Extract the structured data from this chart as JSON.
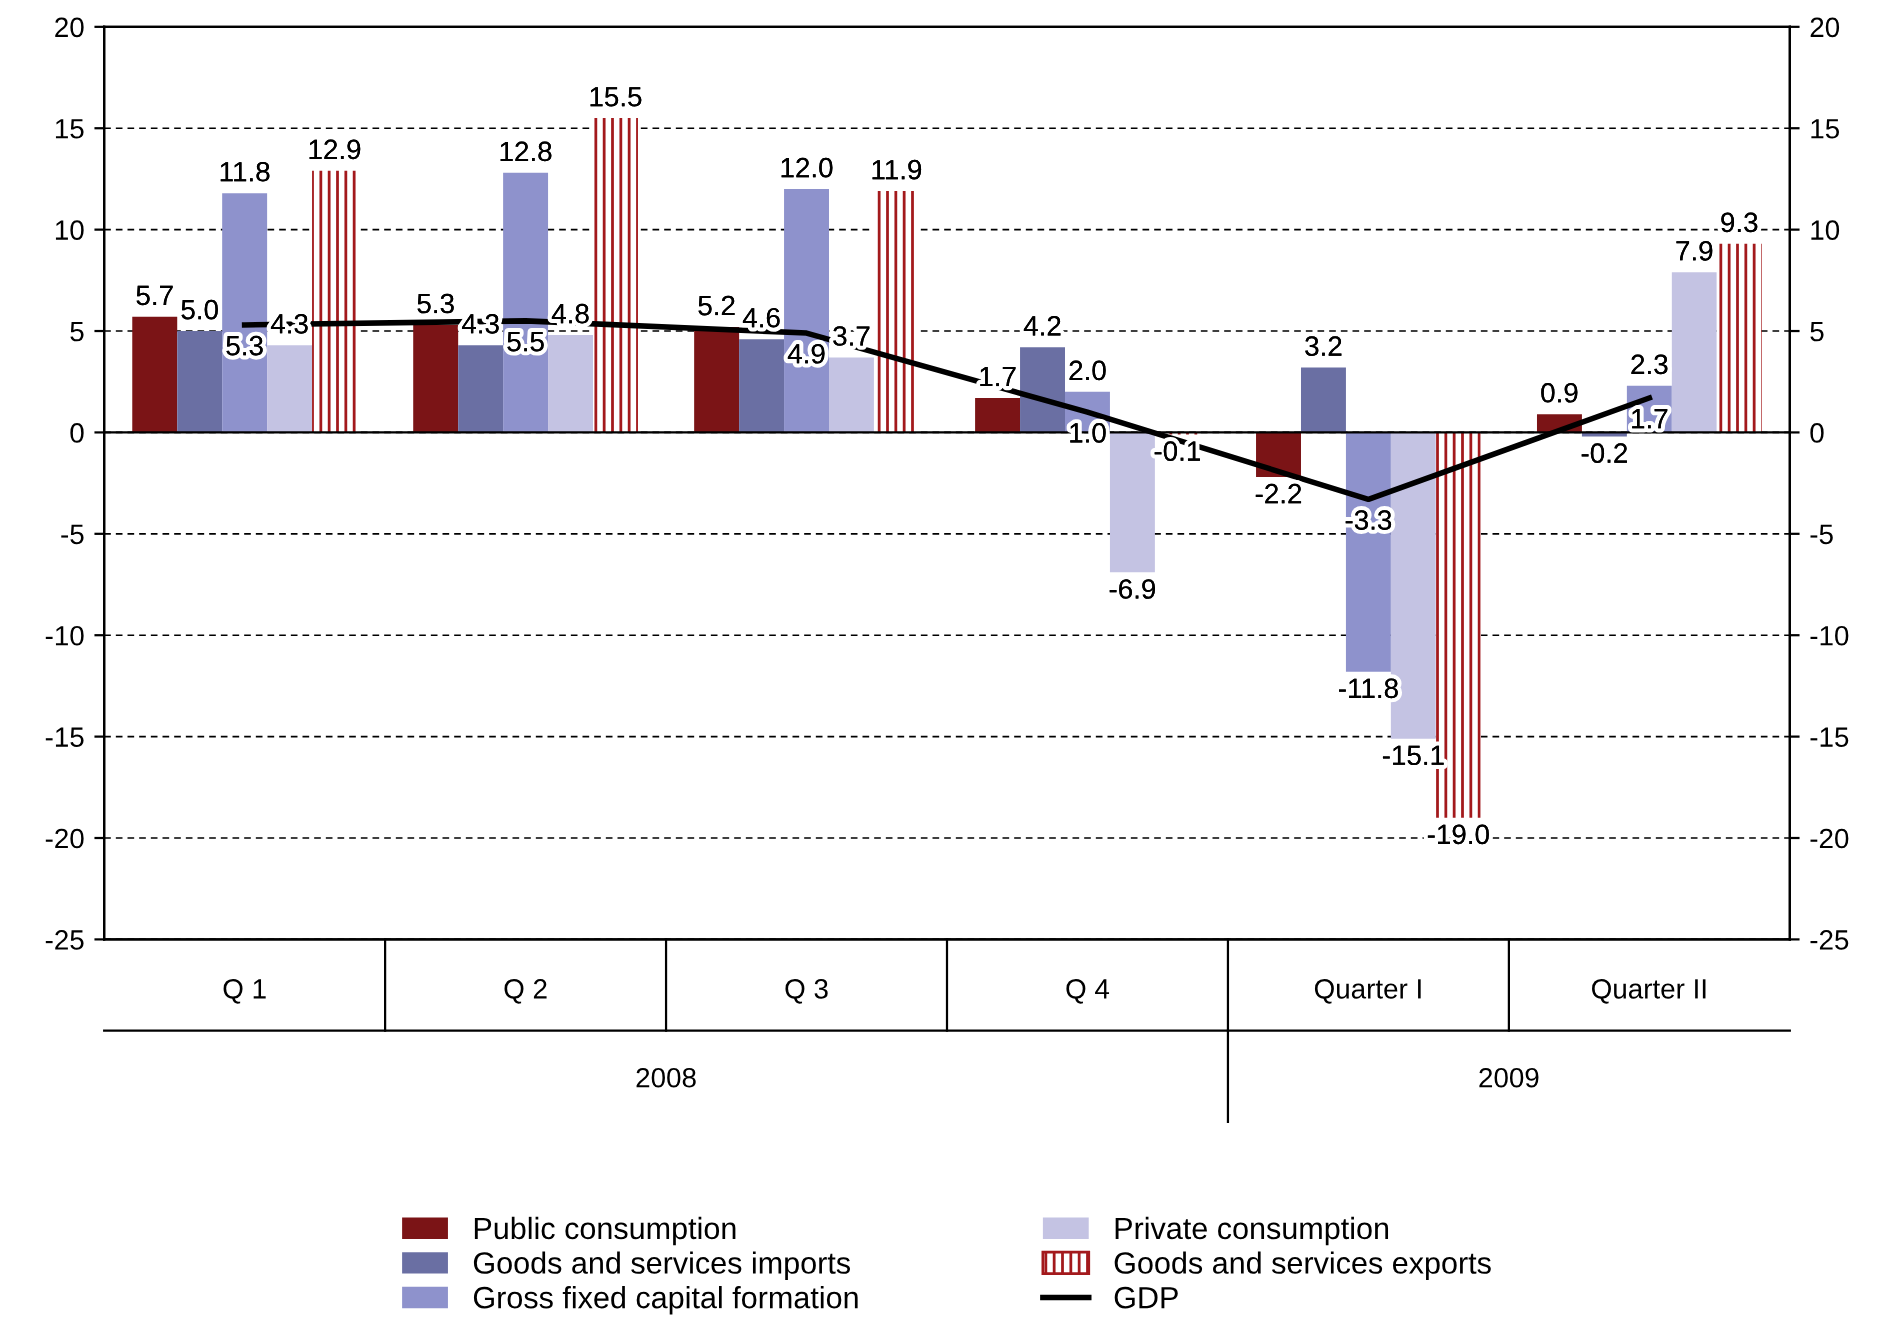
{
  "chart_data": {
    "type": "bar",
    "categories": [
      "Q 1",
      "Q 2",
      "Q 3",
      "Q 4",
      "Quarter I",
      "Quarter II"
    ],
    "series": [
      {
        "name": "Public consumption",
        "color": "#7b1416",
        "values": [
          5.7,
          5.3,
          5.2,
          1.7,
          -2.2,
          0.9
        ],
        "value_labels": [
          "5.7",
          "5.3",
          "5.2",
          "1.7",
          "-2.2",
          "0.9"
        ]
      },
      {
        "name": "Goods and services imports",
        "color": "#6a6fa3",
        "values": [
          5.0,
          4.3,
          4.6,
          4.2,
          3.2,
          -0.2
        ],
        "value_labels": [
          "5.0",
          "4.3",
          "4.6",
          "4.2",
          "3.2",
          "-0.2"
        ]
      },
      {
        "name": "Gross fixed capital formation",
        "color": "#8e92cc",
        "values": [
          11.8,
          12.8,
          12.0,
          2.0,
          -11.8,
          2.3
        ],
        "value_labels": [
          "11.8",
          "12.8",
          "12.0",
          "2.0",
          "-11.8",
          "2.3"
        ]
      },
      {
        "name": "Private consumption",
        "color": "#c4c3e3",
        "values": [
          4.3,
          4.8,
          3.7,
          -6.9,
          -15.1,
          7.9
        ],
        "value_labels": [
          "4.3",
          "4.8",
          "3.7",
          "-6.9",
          "-15.1",
          "7.9"
        ]
      },
      {
        "name": "Goods and services exports",
        "color": "#a3191c",
        "values": [
          12.9,
          15.5,
          11.9,
          -0.1,
          -19.0,
          9.3
        ],
        "value_labels": [
          "12.9",
          "15.5",
          "11.9",
          "-0.1",
          "-19.0",
          "9.3"
        ]
      },
      {
        "name": "GDP",
        "type": "line",
        "color": "#000000",
        "marker": "none",
        "values": [
          5.3,
          5.5,
          4.9,
          1.0,
          -3.3,
          1.7
        ],
        "value_labels": [
          "5.3",
          "5.5",
          "4.9",
          "1.0",
          "-3.3",
          "1.7"
        ]
      }
    ],
    "annotations": [
      "2008",
      "2009"
    ],
    "ylim": [
      -25,
      20
    ],
    "yticks": [
      -25,
      -20,
      -15,
      -10,
      -5,
      0,
      5,
      10,
      15,
      20
    ],
    "y2lim": [
      -25,
      20
    ],
    "y2ticks": [
      -25,
      -20,
      -15,
      -10,
      -5,
      0,
      5,
      10,
      15,
      20
    ],
    "grid": "y",
    "legend": "bottom"
  }
}
